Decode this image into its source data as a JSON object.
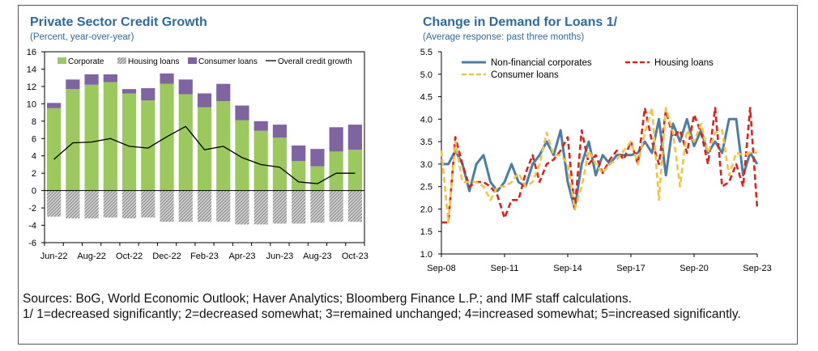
{
  "colors": {
    "title": "#2f6a9f",
    "corporate": "#9bc95e",
    "corporate_edge": "#6f9c3a",
    "consumer": "#8064a2",
    "housing_fill": "#c9c9c9",
    "overall": "#000000",
    "nfc": "#4a7ea6",
    "housing_line": "#e0201b",
    "consumer_line": "#f5c342"
  },
  "chart_data": [
    {
      "type": "bar",
      "title": "Private Sector Credit Growth",
      "subtitle": "(Percent, year-over-year)",
      "ylim": [
        -6,
        16
      ],
      "yticks": [
        -6,
        -4,
        -2,
        0,
        2,
        4,
        6,
        8,
        10,
        12,
        14,
        16
      ],
      "categories": [
        "Jun-22",
        "Jul-22",
        "Aug-22",
        "Sep-22",
        "Oct-22",
        "Nov-22",
        "Dec-22",
        "Jan-23",
        "Feb-23",
        "Mar-23",
        "Apr-23",
        "May-23",
        "Jun-23",
        "Jul-23",
        "Aug-23",
        "Sep-23",
        "Oct-23"
      ],
      "xtick_labels": [
        "Jun-22",
        "Aug-22",
        "Oct-22",
        "Dec-22",
        "Feb-23",
        "Apr-23",
        "Jun-23",
        "Aug-23",
        "Oct-23"
      ],
      "legend": [
        "Corporate",
        "Housing loans",
        "Consumer loans",
        "Overall credit growth"
      ],
      "series": [
        {
          "name": "Corporate",
          "kind": "stacked-bar",
          "values": [
            9.5,
            11.7,
            12.2,
            12.5,
            11.2,
            10.4,
            12.3,
            11.1,
            9.6,
            10.3,
            8.1,
            6.9,
            6.1,
            3.4,
            2.8,
            4.5,
            4.7
          ]
        },
        {
          "name": "Consumer loans",
          "kind": "stacked-bar",
          "values": [
            0.6,
            1.1,
            1.2,
            0.9,
            0.5,
            1.4,
            1.2,
            1.7,
            1.6,
            2.0,
            1.7,
            1.1,
            1.5,
            1.8,
            2.0,
            2.8,
            2.9
          ]
        },
        {
          "name": "Housing loans",
          "kind": "stacked-bar",
          "values": [
            -3.0,
            -3.2,
            -3.2,
            -3.1,
            -3.2,
            -3.1,
            -3.6,
            -3.6,
            -3.6,
            -3.6,
            -3.9,
            -3.9,
            -3.8,
            -3.8,
            -3.7,
            -3.6,
            -3.6
          ]
        },
        {
          "name": "Overall credit growth",
          "kind": "line",
          "values": [
            3.6,
            5.5,
            5.6,
            6.0,
            5.1,
            4.9,
            6.2,
            7.4,
            4.7,
            5.1,
            3.8,
            3.0,
            2.7,
            1.0,
            0.8,
            2.0,
            2.0
          ]
        }
      ]
    },
    {
      "type": "line",
      "title": "Change in Demand for Loans 1/",
      "subtitle": "(Average response: past three months)",
      "ylim": [
        1.0,
        5.5
      ],
      "yticks": [
        "1.0",
        "1.5",
        "2.0",
        "2.5",
        "3.0",
        "3.5",
        "4.0",
        "4.5",
        "5.0",
        "5.5"
      ],
      "xlim": [
        2008.67,
        2023.67
      ],
      "xticks": [
        2008.67,
        2011.67,
        2014.67,
        2017.67,
        2020.67,
        2023.67
      ],
      "xtick_labels": [
        "Sep-08",
        "Sep-11",
        "Sep-14",
        "Sep-17",
        "Sep-20",
        "Sep-23"
      ],
      "legend": [
        "Non-financial corporates",
        "Housing loans",
        "Consumer loans"
      ],
      "series": [
        {
          "name": "Non-financial corporates",
          "x": [
            2008.67,
            2009.0,
            2009.33,
            2009.67,
            2010.0,
            2010.33,
            2010.67,
            2011.0,
            2011.33,
            2011.67,
            2012.0,
            2012.33,
            2012.67,
            2013.0,
            2013.33,
            2013.67,
            2014.0,
            2014.33,
            2014.67,
            2015.0,
            2015.33,
            2015.67,
            2016.0,
            2016.33,
            2016.67,
            2017.0,
            2017.33,
            2017.67,
            2018.0,
            2018.33,
            2018.67,
            2019.0,
            2019.33,
            2019.67,
            2020.0,
            2020.33,
            2020.67,
            2021.0,
            2021.33,
            2021.67,
            2022.0,
            2022.33,
            2022.67,
            2023.0,
            2023.33,
            2023.67
          ],
          "y": [
            3.0,
            3.0,
            3.3,
            3.0,
            2.4,
            3.0,
            3.2,
            2.6,
            2.4,
            2.6,
            3.0,
            2.6,
            2.5,
            3.0,
            3.2,
            3.5,
            3.2,
            3.75,
            2.6,
            2.0,
            3.0,
            3.5,
            2.75,
            3.2,
            3.0,
            3.2,
            3.2,
            3.2,
            3.25,
            3.5,
            3.25,
            4.0,
            2.75,
            3.9,
            3.5,
            4.0,
            3.4,
            3.75,
            3.25,
            3.5,
            3.25,
            4.0,
            4.0,
            2.75,
            3.25,
            3.0
          ]
        },
        {
          "name": "Housing loans",
          "x": [
            2008.67,
            2009.0,
            2009.33,
            2009.67,
            2010.0,
            2010.33,
            2010.67,
            2011.0,
            2011.33,
            2011.67,
            2012.0,
            2012.33,
            2012.67,
            2013.0,
            2013.33,
            2013.67,
            2014.0,
            2014.33,
            2014.67,
            2015.0,
            2015.33,
            2015.67,
            2016.0,
            2016.33,
            2016.67,
            2017.0,
            2017.33,
            2017.67,
            2018.0,
            2018.33,
            2018.67,
            2019.0,
            2019.33,
            2019.67,
            2020.0,
            2020.33,
            2020.67,
            2021.0,
            2021.33,
            2021.67,
            2022.0,
            2022.33,
            2022.67,
            2023.0,
            2023.33,
            2023.67
          ],
          "y": [
            1.7,
            1.7,
            3.6,
            3.0,
            2.5,
            2.6,
            2.6,
            2.5,
            2.3,
            1.8,
            2.2,
            2.2,
            2.8,
            3.2,
            2.6,
            3.0,
            3.1,
            3.3,
            3.6,
            2.0,
            3.75,
            3.0,
            3.2,
            2.8,
            3.1,
            3.3,
            3.1,
            3.5,
            3.0,
            4.25,
            3.5,
            3.0,
            4.2,
            3.6,
            3.75,
            3.25,
            4.1,
            3.7,
            3.0,
            4.25,
            2.5,
            2.6,
            3.0,
            2.5,
            4.25,
            2.0
          ]
        },
        {
          "name": "Consumer loans",
          "x": [
            2008.67,
            2009.0,
            2009.33,
            2009.67,
            2010.0,
            2010.33,
            2010.67,
            2011.0,
            2011.33,
            2011.67,
            2012.0,
            2012.33,
            2012.67,
            2013.0,
            2013.33,
            2013.67,
            2014.0,
            2014.33,
            2014.67,
            2015.0,
            2015.33,
            2015.67,
            2016.0,
            2016.33,
            2016.67,
            2017.0,
            2017.33,
            2017.67,
            2018.0,
            2018.33,
            2018.67,
            2019.0,
            2019.33,
            2019.67,
            2020.0,
            2020.33,
            2020.67,
            2021.0,
            2021.33,
            2021.67,
            2022.0,
            2022.33,
            2022.67,
            2023.0,
            2023.33,
            2023.67
          ],
          "y": [
            3.3,
            1.7,
            3.5,
            2.6,
            2.6,
            2.6,
            2.5,
            2.2,
            2.5,
            2.5,
            2.6,
            2.8,
            2.5,
            2.6,
            3.0,
            3.7,
            3.2,
            3.2,
            3.0,
            2.0,
            2.5,
            3.3,
            3.0,
            2.8,
            3.0,
            3.1,
            3.3,
            3.5,
            3.0,
            3.7,
            4.25,
            2.2,
            4.25,
            3.7,
            2.5,
            3.75,
            3.5,
            3.9,
            3.25,
            3.7,
            3.75,
            2.75,
            3.25,
            3.2,
            3.25,
            3.25
          ]
        }
      ]
    }
  ],
  "notes": {
    "sources": "Sources: BoG, World Economic Outlook; Haver Analytics; Bloomberg Finance L.P.; and IMF staff calculations.",
    "footnote": "1/ 1=decreased significantly; 2=decreased somewhat; 3=remained unchanged; 4=increased somewhat; 5=increased significantly."
  }
}
